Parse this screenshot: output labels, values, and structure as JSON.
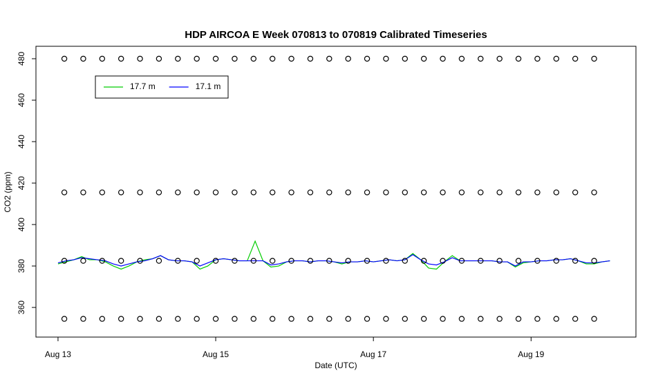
{
  "chart_data": {
    "type": "line",
    "title": "HDP AIRCOA E  Week 070813 to 070819  Calibrated Timeseries",
    "xlabel": "Date (UTC)",
    "ylabel": "CO2 (ppm)",
    "xlim": [
      12.72,
      20.33
    ],
    "ylim": [
      345.7,
      486
    ],
    "xticks": [
      {
        "value": 13,
        "label": "Aug 13"
      },
      {
        "value": 15,
        "label": "Aug 15"
      },
      {
        "value": 17,
        "label": "Aug 17"
      },
      {
        "value": 19,
        "label": "Aug 19"
      }
    ],
    "yticks": [
      360,
      380,
      400,
      420,
      440,
      460,
      480
    ],
    "legend": "top-left",
    "series": [
      {
        "name": "17.7 m",
        "color": "#00cc00",
        "x": [
          13,
          13.1,
          13.2,
          13.3,
          13.4,
          13.5,
          13.6,
          13.7,
          13.8,
          13.9,
          14,
          14.1,
          14.2,
          14.3,
          14.4,
          14.5,
          14.6,
          14.7,
          14.8,
          14.9,
          15,
          15.1,
          15.2,
          15.3,
          15.4,
          15.5,
          15.6,
          15.7,
          15.8,
          15.9,
          16,
          16.1,
          16.2,
          16.3,
          16.4,
          16.5,
          16.6,
          16.7,
          16.8,
          16.9,
          17,
          17.1,
          17.2,
          17.3,
          17.4,
          17.5,
          17.6,
          17.7,
          17.8,
          17.9,
          18,
          18.1,
          18.2,
          18.3,
          18.4,
          18.5,
          18.6,
          18.7,
          18.8,
          18.9,
          19,
          19.1,
          19.2,
          19.3,
          19.4,
          19.5,
          19.6,
          19.7,
          19.8,
          19.9,
          20
        ],
        "values": [
          381,
          382,
          383,
          384.5,
          383,
          383,
          382,
          380,
          378.5,
          380,
          382,
          383,
          383.5,
          385,
          383,
          382.5,
          382.5,
          382,
          378.5,
          380,
          383,
          383.5,
          383,
          382.5,
          382.5,
          392,
          382.5,
          379.5,
          380,
          382,
          382.5,
          382.5,
          382,
          382.5,
          382.5,
          382,
          381,
          382,
          382,
          382.5,
          382,
          382.5,
          383,
          382.5,
          383,
          386,
          383,
          379,
          378.5,
          382,
          385,
          382.5,
          382.5,
          382.5,
          382.5,
          382.5,
          382,
          382,
          379.5,
          381.5,
          382,
          382.5,
          382.5,
          383,
          383,
          383.5,
          382.5,
          381,
          381,
          382,
          382.5
        ]
      },
      {
        "name": "17.1 m",
        "color": "#0000ff",
        "x": [
          13,
          13.1,
          13.2,
          13.3,
          13.4,
          13.5,
          13.6,
          13.7,
          13.8,
          13.9,
          14,
          14.1,
          14.2,
          14.3,
          14.4,
          14.5,
          14.6,
          14.7,
          14.8,
          14.9,
          15,
          15.1,
          15.2,
          15.3,
          15.4,
          15.5,
          15.6,
          15.7,
          15.8,
          15.9,
          16,
          16.1,
          16.2,
          16.3,
          16.4,
          16.5,
          16.6,
          16.7,
          16.8,
          16.9,
          17,
          17.1,
          17.2,
          17.3,
          17.4,
          17.5,
          17.6,
          17.7,
          17.8,
          17.9,
          18,
          18.1,
          18.2,
          18.3,
          18.4,
          18.5,
          18.6,
          18.7,
          18.8,
          18.9,
          19,
          19.1,
          19.2,
          19.3,
          19.4,
          19.5,
          19.6,
          19.7,
          19.8,
          19.9,
          20
        ],
        "values": [
          381.5,
          382.5,
          383,
          384,
          383.5,
          383,
          382.5,
          381,
          380,
          381,
          382,
          382.5,
          383.5,
          385,
          383,
          382.5,
          382.5,
          382,
          380,
          381.5,
          383,
          383.5,
          383,
          382.5,
          382.5,
          382.5,
          382.5,
          380.5,
          381,
          382,
          382.5,
          382.5,
          382,
          382.5,
          382.5,
          382,
          381.5,
          382,
          382,
          382.5,
          382,
          382.5,
          383,
          382.5,
          383,
          385.5,
          383,
          381,
          380.5,
          382,
          384,
          382.5,
          382.5,
          382.5,
          382.5,
          382.5,
          382,
          382,
          380,
          382,
          382,
          382.5,
          382.5,
          383,
          383,
          383.5,
          382.5,
          381.5,
          381.5,
          382,
          382.5
        ]
      },
      {
        "marker": "circle",
        "color": "#000000",
        "x": [
          13.08,
          13.32,
          13.56,
          13.8,
          14.04,
          14.28,
          14.52,
          14.76,
          15,
          15.24,
          15.48,
          15.72,
          15.96,
          16.2,
          16.44,
          16.68,
          16.92,
          17.16,
          17.4,
          17.64,
          17.88,
          18.12,
          18.36,
          18.6,
          18.84,
          19.08,
          19.32,
          19.56,
          19.8
        ],
        "values": [
          480,
          480,
          480,
          480,
          480,
          480,
          480,
          480,
          480,
          480,
          480,
          480,
          480,
          480,
          480,
          480,
          480,
          480,
          480,
          480,
          480,
          480,
          480,
          480,
          480,
          480,
          480,
          480,
          480
        ]
      },
      {
        "marker": "circle",
        "color": "#000000",
        "x": [
          13.08,
          13.32,
          13.56,
          13.8,
          14.04,
          14.28,
          14.52,
          14.76,
          15,
          15.24,
          15.48,
          15.72,
          15.96,
          16.2,
          16.44,
          16.68,
          16.92,
          17.16,
          17.4,
          17.64,
          17.88,
          18.12,
          18.36,
          18.6,
          18.84,
          19.08,
          19.32,
          19.56,
          19.8
        ],
        "values": [
          415.5,
          415.5,
          415.5,
          415.5,
          415.5,
          415.5,
          415.5,
          415.5,
          415.5,
          415.5,
          415.5,
          415.5,
          415.5,
          415.5,
          415.5,
          415.5,
          415.5,
          415.5,
          415.5,
          415.5,
          415.5,
          415.5,
          415.5,
          415.5,
          415.5,
          415.5,
          415.5,
          415.5,
          415.5
        ]
      },
      {
        "marker": "circle",
        "color": "#000000",
        "x": [
          13.08,
          13.32,
          13.56,
          13.8,
          14.04,
          14.28,
          14.52,
          14.76,
          15,
          15.24,
          15.48,
          15.72,
          15.96,
          16.2,
          16.44,
          16.68,
          16.92,
          17.16,
          17.4,
          17.64,
          17.88,
          18.12,
          18.36,
          18.6,
          18.84,
          19.08,
          19.32,
          19.56,
          19.8
        ],
        "values": [
          382.5,
          382.5,
          382.5,
          382.5,
          382.5,
          382.5,
          382.5,
          382.5,
          382.5,
          382.5,
          382.5,
          382.5,
          382.5,
          382.5,
          382.5,
          382.5,
          382.5,
          382.5,
          382.5,
          382.5,
          382.5,
          382.5,
          382.5,
          382.5,
          382.5,
          382.5,
          382.5,
          382.5,
          382.5
        ]
      },
      {
        "marker": "circle",
        "color": "#000000",
        "x": [
          13.08,
          13.32,
          13.56,
          13.8,
          14.04,
          14.28,
          14.52,
          14.76,
          15,
          15.24,
          15.48,
          15.72,
          15.96,
          16.2,
          16.44,
          16.68,
          16.92,
          17.16,
          17.4,
          17.64,
          17.88,
          18.12,
          18.36,
          18.6,
          18.84,
          19.08,
          19.32,
          19.56,
          19.8
        ],
        "values": [
          354.5,
          354.5,
          354.5,
          354.5,
          354.5,
          354.5,
          354.5,
          354.5,
          354.5,
          354.5,
          354.5,
          354.5,
          354.5,
          354.5,
          354.5,
          354.5,
          354.5,
          354.5,
          354.5,
          354.5,
          354.5,
          354.5,
          354.5,
          354.5,
          354.5,
          354.5,
          354.5,
          354.5,
          354.5
        ]
      }
    ]
  }
}
